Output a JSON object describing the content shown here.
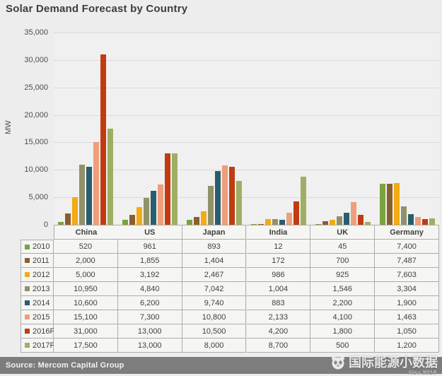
{
  "title": "Solar Demand Forecast by Country",
  "chart_data": {
    "type": "bar",
    "title": "Solar Demand Forecast by Country",
    "xlabel": "",
    "ylabel": "MW",
    "ylim": [
      0,
      35000
    ],
    "ytick_step": 5000,
    "ytick_labels": [
      "35,000",
      "30,000",
      "25,000",
      "20,000",
      "15,000",
      "10,000",
      "5,000",
      "0"
    ],
    "grid": true,
    "legend_position": "table-left-column",
    "categories": [
      "China",
      "US",
      "Japan",
      "India",
      "UK",
      "Germany"
    ],
    "series": [
      {
        "name": "2010",
        "color": "#79A33E",
        "values": [
          520,
          961,
          893,
          12,
          45,
          7400
        ]
      },
      {
        "name": "2011",
        "color": "#8B5E2F",
        "values": [
          2000,
          1855,
          1404,
          172,
          700,
          7487
        ]
      },
      {
        "name": "2012",
        "color": "#F2AB13",
        "values": [
          5000,
          3192,
          2467,
          986,
          925,
          7603
        ]
      },
      {
        "name": "2013",
        "color": "#91916A",
        "values": [
          10950,
          4840,
          7042,
          1004,
          1546,
          3304
        ]
      },
      {
        "name": "2014",
        "color": "#2A5E6C",
        "values": [
          10600,
          6200,
          9740,
          883,
          2200,
          1900
        ]
      },
      {
        "name": "2015",
        "color": "#EE9E7B",
        "values": [
          15100,
          7300,
          10800,
          2133,
          4100,
          1463
        ]
      },
      {
        "name": "2016F",
        "color": "#C03C10",
        "values": [
          31000,
          13000,
          10500,
          4200,
          1800,
          1050
        ]
      },
      {
        "name": "2017F",
        "color": "#9EAF63",
        "values": [
          17500,
          13000,
          8000,
          8700,
          500,
          1200
        ]
      }
    ]
  },
  "footer": {
    "source": "Source: Mercom Capital Group",
    "watermark": "国际能源小数据",
    "watermark_date": "Nov 2016"
  }
}
